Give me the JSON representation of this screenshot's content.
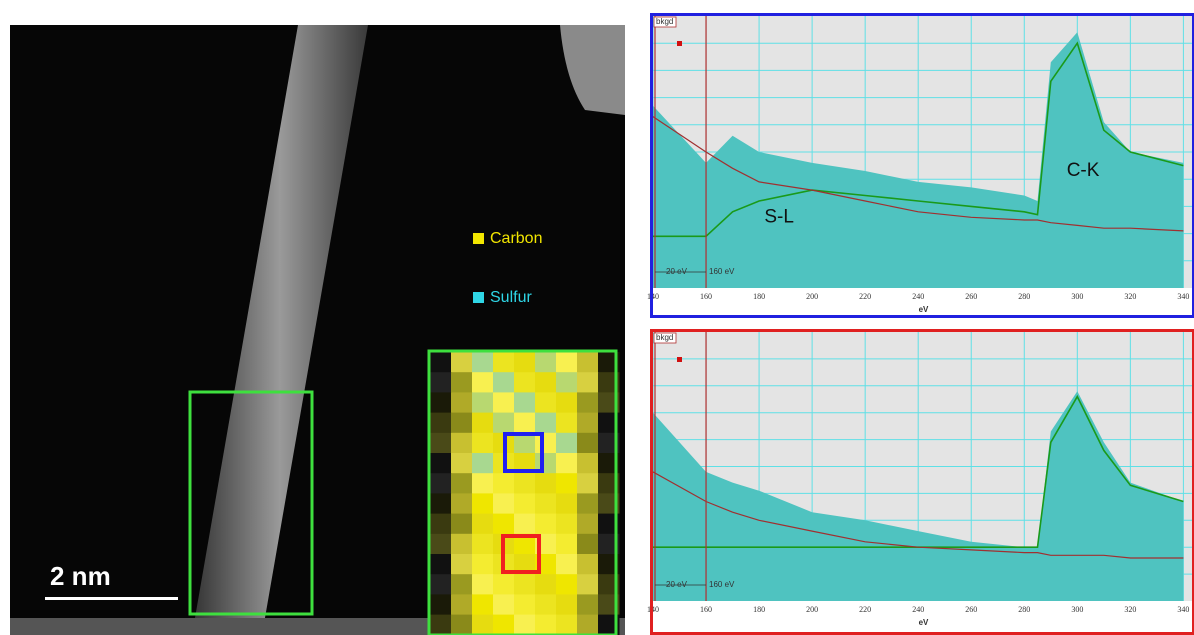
{
  "image": {
    "scale_bar": "2 nm",
    "legend": [
      {
        "label": "Carbon",
        "color": "#f2e600"
      },
      {
        "label": "Sulfur",
        "color": "#2fd6e6"
      }
    ]
  },
  "chart_data": [
    {
      "type": "area",
      "frame_color": "#2020e0",
      "window_label": "bkgd",
      "fit_width": {
        "value": 20,
        "label": "20 eV"
      },
      "fit_window": {
        "value": 160,
        "label": "160 eV"
      },
      "xlabel": "eV",
      "annotations": [
        "S-L",
        "C-K"
      ],
      "x": [
        140,
        160,
        170,
        180,
        200,
        220,
        240,
        260,
        280,
        285,
        290,
        300,
        310,
        320,
        340
      ],
      "series": [
        {
          "color": "#4fc3c0",
          "values": [
            67,
            46,
            56,
            50,
            46,
            43,
            39,
            37,
            34,
            32,
            83,
            94,
            61,
            50,
            46
          ]
        },
        {
          "color": "#1a9a1a",
          "values": [
            19,
            19,
            28,
            32,
            36,
            34,
            32,
            30,
            28,
            27,
            76,
            90,
            58,
            50,
            45
          ]
        },
        {
          "color": "#a03030",
          "values": [
            63,
            50,
            44,
            39,
            36,
            32,
            28,
            26,
            25,
            25,
            24,
            23,
            22,
            22,
            21
          ]
        }
      ],
      "xlim": [
        140,
        344
      ],
      "xticks": [
        140,
        160,
        180,
        200,
        220,
        240,
        260,
        280,
        300,
        320,
        340
      ],
      "ylim": [
        0,
        100
      ],
      "grid": true
    },
    {
      "type": "area",
      "frame_color": "#e02020",
      "window_label": "bkgd",
      "fit_width": {
        "value": 20,
        "label": "20 eV"
      },
      "fit_window": {
        "value": 160,
        "label": "160 eV"
      },
      "xlabel": "eV",
      "x": [
        140,
        160,
        170,
        180,
        200,
        220,
        240,
        260,
        280,
        285,
        290,
        300,
        310,
        320,
        340
      ],
      "series": [
        {
          "color": "#4fc3c0",
          "values": [
            70,
            48,
            44,
            41,
            33,
            30,
            26,
            22,
            20,
            20,
            63,
            78,
            59,
            44,
            37
          ]
        },
        {
          "color": "#1a9a1a",
          "values": [
            20,
            20,
            20,
            20,
            20,
            20,
            20,
            20,
            20,
            20,
            59,
            76,
            56,
            43,
            37
          ]
        },
        {
          "color": "#a03030",
          "values": [
            48,
            37,
            33,
            30,
            26,
            22,
            20,
            19,
            18,
            18,
            17,
            17,
            17,
            16,
            16
          ]
        }
      ],
      "xlim": [
        140,
        344
      ],
      "xticks": [
        140,
        160,
        180,
        200,
        220,
        240,
        260,
        280,
        300,
        320,
        340
      ],
      "ylim": [
        0,
        100
      ],
      "grid": true
    }
  ]
}
